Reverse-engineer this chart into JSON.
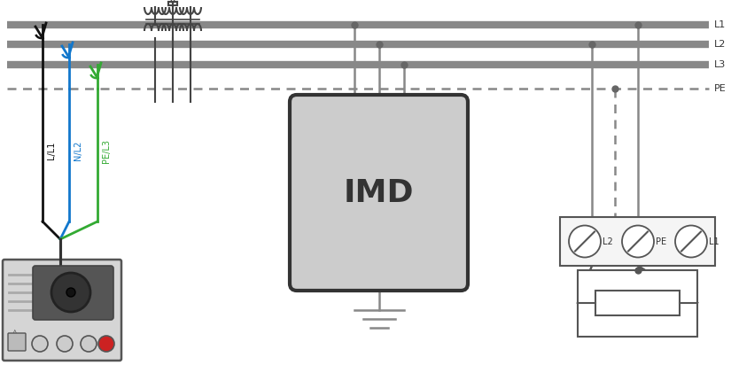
{
  "bg_color": "#ffffff",
  "lc": "#888888",
  "dc": "#444444",
  "bus_lw": 6,
  "wire_lw": 1.8,
  "probe_colors": [
    "#111111",
    "#1177cc",
    "#33aa33"
  ],
  "probe_labels": [
    "L/L1",
    "N/L2",
    "PE/L3"
  ],
  "bus_labels": [
    "L1",
    "L2",
    "L3",
    "PE"
  ]
}
